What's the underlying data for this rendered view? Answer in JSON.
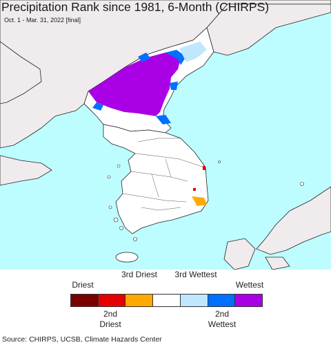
{
  "title": "Precipitation Rank since 1981, 6-Month (CHIRPS)",
  "subtitle": "Oct. 1 - Mar. 31, 2022 [final]",
  "legend": {
    "top_labels": [
      {
        "id": "driest",
        "text": "Driest"
      },
      {
        "id": "third-driest",
        "text": "3rd Driest"
      },
      {
        "id": "third-wettest",
        "text": "3rd Wettest"
      },
      {
        "id": "wettest",
        "text": "Wettest"
      }
    ],
    "bottom_labels": [
      {
        "id": "second-driest",
        "text": "2nd Driest"
      },
      {
        "id": "second-wettest",
        "text": "2nd Wettest"
      }
    ],
    "colors": [
      "#7a0000",
      "#e60000",
      "#ffaa00",
      "#ffffff",
      "#bfe8ff",
      "#0070ff",
      "#aa00e6"
    ]
  },
  "map": {
    "ocean_color": "#bdfdff",
    "land_color": "#ffffff",
    "no_data_land_color": "#f0ecee",
    "wettest_color": "#aa00e6",
    "second_wettest_color": "#0070ff"
  },
  "source": "Source: CHIRPS, UCSB, Climate Hazards Center"
}
